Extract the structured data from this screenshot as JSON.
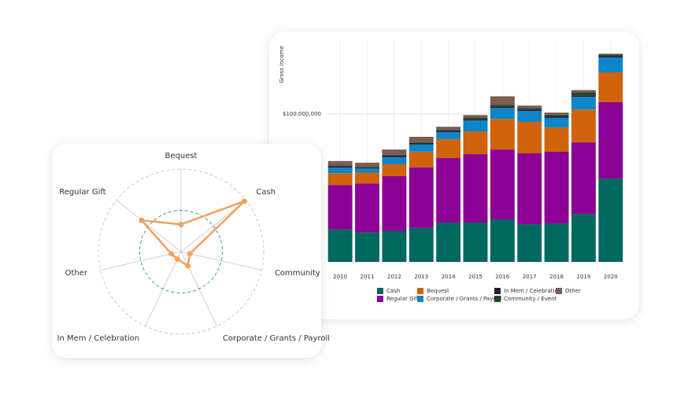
{
  "chart_data": [
    {
      "type": "bar",
      "stacked": true,
      "y_label": "Gross income",
      "categories": [
        "2010",
        "2011",
        "2012",
        "2013",
        "2014",
        "2015",
        "2016",
        "2017",
        "2018",
        "2019",
        "2020"
      ],
      "series": [
        {
          "name": "Cash",
          "color": "#00685f",
          "values": [
            22000000,
            20000000,
            21000000,
            23000000,
            26600000,
            26600000,
            28700000,
            25500000,
            26100000,
            32400000,
            56400000
          ]
        },
        {
          "name": "Regular Gift",
          "color": "#8c0096",
          "values": [
            30000000,
            33000000,
            37000000,
            41000000,
            43600000,
            46300000,
            47300000,
            47900000,
            48400000,
            48400000,
            51600000
          ]
        },
        {
          "name": "Bequest",
          "color": "#d0620c",
          "values": [
            8000000,
            7400000,
            8000000,
            10600000,
            12800000,
            15400000,
            20700000,
            21300000,
            16500000,
            22300000,
            20200000
          ]
        },
        {
          "name": "Corporate  / Grants  / Payroll",
          "color": "#0c86c8",
          "values": [
            3700000,
            2700000,
            4800000,
            4800000,
            4800000,
            7400000,
            7400000,
            7400000,
            6400000,
            8500000,
            10100000
          ]
        },
        {
          "name": "In Mem  / Celebration",
          "color": "#2b1a3c",
          "values": [
            1000000,
            500000,
            1000000,
            1000000,
            1000000,
            1000000,
            1000000,
            1000000,
            1000000,
            1000000,
            1000000
          ]
        },
        {
          "name": "Community  / Event",
          "color": "#1c4a2c",
          "values": [
            500000,
            500000,
            500000,
            500000,
            500000,
            1000000,
            1000000,
            1000000,
            1000000,
            2000000,
            1000000
          ]
        },
        {
          "name": "Other",
          "color": "#7b5d52",
          "values": [
            3000000,
            3000000,
            3700000,
            3700000,
            2100000,
            1600000,
            5900000,
            1600000,
            1600000,
            1600000,
            500000
          ]
        }
      ],
      "ylim": [
        0,
        150000000
      ],
      "yticks": [
        {
          "value": 100000000,
          "label": "$100,000,000"
        }
      ],
      "grid": true
    },
    {
      "type": "radar",
      "categories": [
        "Bequest",
        "Cash",
        "Community",
        "Corporate / Grants / Payroll",
        "In Mem / Celebration",
        "Other",
        "Regular Gift"
      ],
      "values": [
        33,
        98,
        11,
        19,
        10,
        12,
        61
      ],
      "color": "#f4a05c",
      "rlim": [
        0,
        100
      ],
      "rticks": [
        50,
        100
      ]
    }
  ]
}
